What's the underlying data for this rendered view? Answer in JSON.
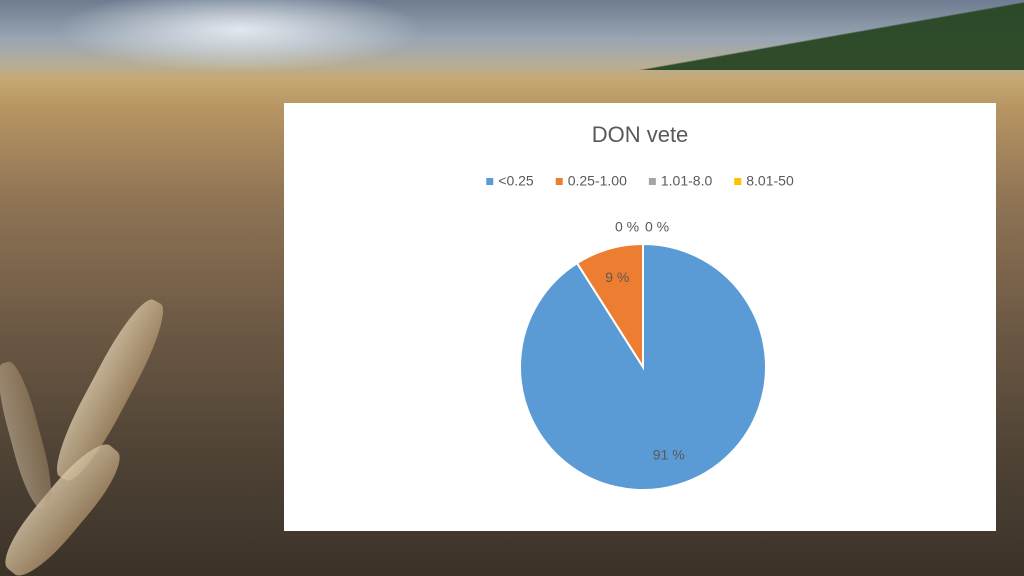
{
  "chart_data": {
    "type": "pie",
    "title": "DON vete",
    "categories": [
      "<0.25",
      "0.25-1.00",
      "1.01-8.0",
      "8.01-50"
    ],
    "values": [
      91,
      9,
      0,
      0
    ],
    "value_labels": [
      "91 %",
      "9 %",
      "0 %",
      "0 %"
    ],
    "colors": [
      "#5b9bd5",
      "#ed7d31",
      "#a5a5a5",
      "#ffc000"
    ],
    "legend": "top"
  }
}
